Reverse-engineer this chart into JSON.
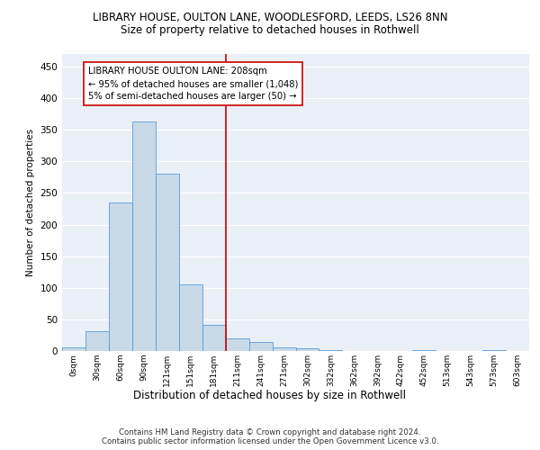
{
  "title_line1": "LIBRARY HOUSE, OULTON LANE, WOODLESFORD, LEEDS, LS26 8NN",
  "title_line2": "Size of property relative to detached houses in Rothwell",
  "xlabel": "Distribution of detached houses by size in Rothwell",
  "ylabel": "Number of detached properties",
  "bin_labels": [
    "0sqm",
    "30sqm",
    "60sqm",
    "90sqm",
    "121sqm",
    "151sqm",
    "181sqm",
    "211sqm",
    "241sqm",
    "271sqm",
    "302sqm",
    "332sqm",
    "362sqm",
    "392sqm",
    "422sqm",
    "452sqm",
    "513sqm",
    "543sqm",
    "573sqm",
    "603sqm"
  ],
  "bar_heights": [
    5,
    32,
    235,
    363,
    280,
    105,
    41,
    20,
    14,
    6,
    4,
    1,
    0,
    0,
    0,
    1,
    0,
    0,
    1,
    0
  ],
  "bar_color": "#c9d9e8",
  "bar_edge_color": "#5b9bd5",
  "vline_x_index": 7,
  "vline_color": "#cc0000",
  "annotation_text": "LIBRARY HOUSE OULTON LANE: 208sqm\n← 95% of detached houses are smaller (1,048)\n5% of semi-detached houses are larger (50) →",
  "annotation_box_color": "#ffffff",
  "annotation_edge_color": "#cc0000",
  "ylim": [
    0,
    470
  ],
  "yticks": [
    0,
    50,
    100,
    150,
    200,
    250,
    300,
    350,
    400,
    450
  ],
  "background_color": "#eaf0f8",
  "grid_color": "#ffffff",
  "footer_line1": "Contains HM Land Registry data © Crown copyright and database right 2024.",
  "footer_line2": "Contains public sector information licensed under the Open Government Licence v3.0."
}
